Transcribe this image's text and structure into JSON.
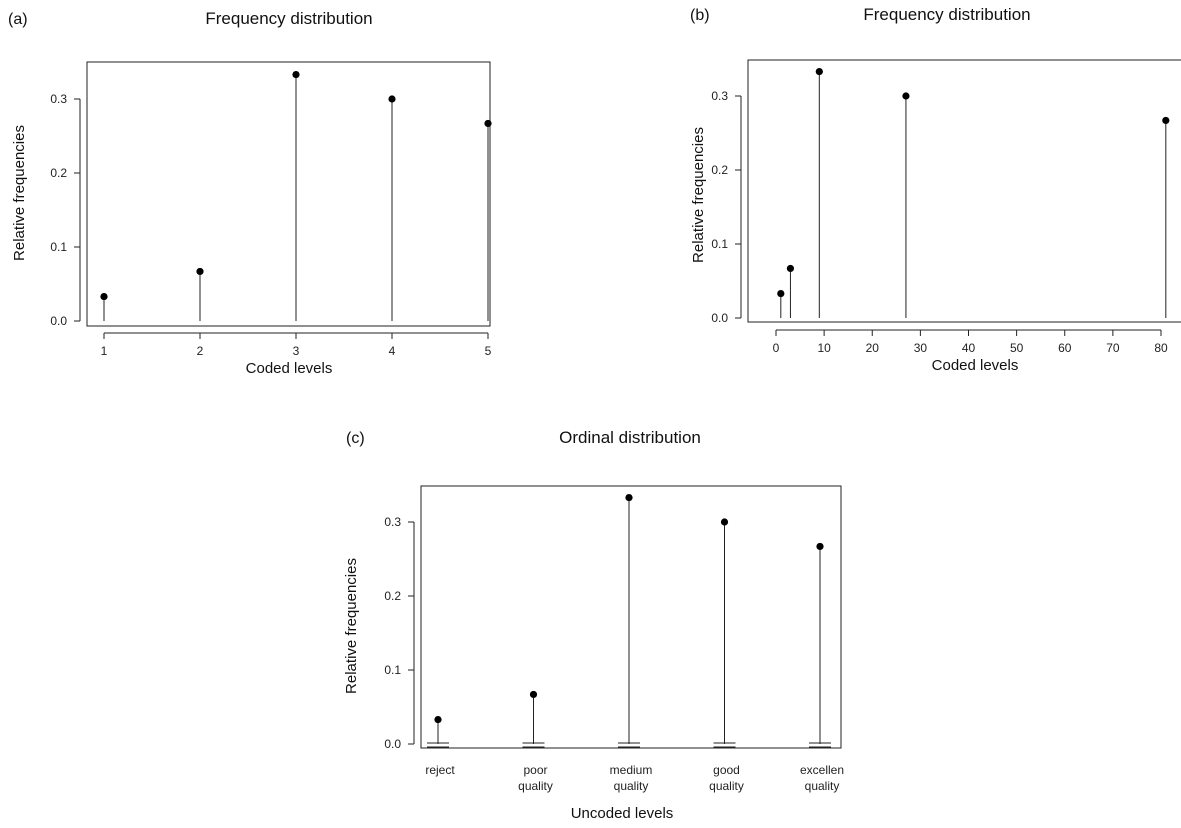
{
  "chart_data": [
    {
      "type": "scatter",
      "panel_label": "(a)",
      "title": "Frequency distribution",
      "xlabel": "Coded levels",
      "ylabel": "Relative frequencies",
      "x": [
        1,
        2,
        3,
        4,
        5
      ],
      "values": [
        0.033,
        0.067,
        0.333,
        0.3,
        0.267
      ],
      "xticks": [
        "1",
        "2",
        "3",
        "4",
        "5"
      ],
      "yticks": [
        "0.0",
        "0.1",
        "0.2",
        "0.3"
      ],
      "xlim": [
        0.9,
        5.1
      ],
      "ylim": [
        0,
        0.345
      ],
      "style": "stem"
    },
    {
      "type": "scatter",
      "panel_label": "(b)",
      "title": "Frequency distribution",
      "xlabel": "Coded levels",
      "ylabel": "Relative frequencies",
      "x": [
        1,
        3,
        9,
        27,
        81
      ],
      "values": [
        0.033,
        0.067,
        0.333,
        0.3,
        0.267
      ],
      "xticks": [
        "0",
        "10",
        "20",
        "30",
        "40",
        "50",
        "60",
        "70",
        "80"
      ],
      "yticks": [
        "0.0",
        "0.1",
        "0.2",
        "0.3"
      ],
      "xlim": [
        -1.5,
        83.5
      ],
      "ylim": [
        0,
        0.345
      ],
      "style": "stem"
    },
    {
      "type": "scatter",
      "panel_label": "(c)",
      "title": "Ordinal distribution",
      "xlabel": "Uncoded levels",
      "ylabel": "Relative frequencies",
      "categories": [
        [
          "reject"
        ],
        [
          "poor",
          "quality"
        ],
        [
          "medium",
          "quality"
        ],
        [
          "good",
          "quality"
        ],
        [
          "excellen",
          "quality"
        ]
      ],
      "values": [
        0.033,
        0.067,
        0.333,
        0.3,
        0.267
      ],
      "yticks": [
        "0.0",
        "0.1",
        "0.2",
        "0.3"
      ],
      "ylim": [
        0,
        0.345
      ],
      "style": "stem"
    }
  ]
}
